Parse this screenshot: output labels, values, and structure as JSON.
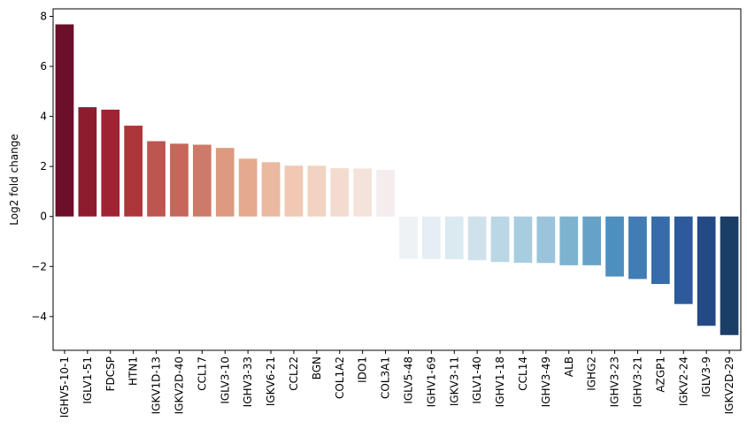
{
  "chart_data": {
    "type": "bar",
    "title": "",
    "xlabel": "",
    "ylabel": "Log2 fold change",
    "ylim": [
      -5.35,
      8.3
    ],
    "yticks": [
      -4,
      -2,
      0,
      2,
      4,
      6,
      8
    ],
    "ytick_labels": [
      "−4",
      "−2",
      "0",
      "2",
      "4",
      "6",
      "8"
    ],
    "grid": false,
    "legend": "none",
    "colormap": "RdBu",
    "categories": [
      "IGHV5-10-1",
      "IGLV1-51",
      "FDCSP",
      "HTN1",
      "IGKV1D-13",
      "IGKV2D-40",
      "CCL17",
      "IGLV3-10",
      "IGHV3-33",
      "IGKV6-21",
      "CCL22",
      "BGN",
      "COL1A2",
      "IDO1",
      "COL3A1",
      "IGLV5-48",
      "IGHV1-69",
      "IGKV3-11",
      "IGLV1-40",
      "IGHV1-18",
      "CCL14",
      "IGHV3-49",
      "ALB",
      "IGHG2",
      "IGHV3-23",
      "IGHV3-21",
      "AZGP1",
      "IGKV2-24",
      "IGLV3-9",
      "IGKV2D-29"
    ],
    "values": [
      7.68,
      4.37,
      4.27,
      3.63,
      3.01,
      2.91,
      2.87,
      2.74,
      2.31,
      2.17,
      2.03,
      2.03,
      1.93,
      1.92,
      1.86,
      -1.69,
      -1.7,
      -1.71,
      -1.75,
      -1.82,
      -1.85,
      -1.86,
      -1.95,
      -1.95,
      -2.4,
      -2.5,
      -2.7,
      -3.5,
      -4.37,
      -4.74
    ],
    "colors": [
      "#6b0f2a",
      "#8d1c2e",
      "#9e2433",
      "#ad363b",
      "#bd5550",
      "#c6675a",
      "#cd7a68",
      "#dd9a80",
      "#e4a98e",
      "#ebb8a0",
      "#f0c8b4",
      "#f2d3c2",
      "#f3dccf",
      "#f4e3da",
      "#f5eded",
      "#eef2f5",
      "#e4eef4",
      "#dbe9f0",
      "#cfe2ec",
      "#bad7e6",
      "#a8cde0",
      "#99c4db",
      "#7db3cf",
      "#66a2c7",
      "#4d8fbe",
      "#417db4",
      "#366ca9",
      "#2c5a9c",
      "#234a85",
      "#1b3e67"
    ]
  }
}
